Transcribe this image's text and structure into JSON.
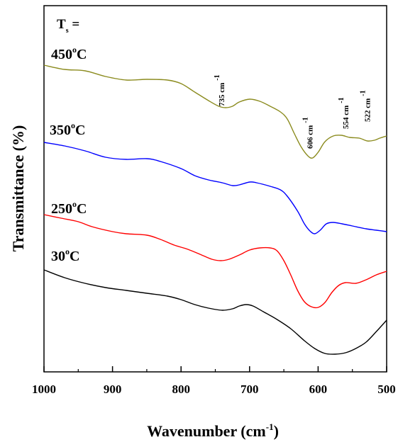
{
  "chart_data": {
    "type": "line",
    "title": "",
    "xlabel": "Wavenumber (cm",
    "xlabel_sup": "-1",
    "xlabel_close": ")",
    "ylabel": "Transmittance (%)",
    "xlim": [
      1000,
      500
    ],
    "x_reversed": true,
    "y_ticks_shown": false,
    "grid": false,
    "xticks": [
      1000,
      900,
      800,
      700,
      600,
      500
    ],
    "xtick_labels": [
      "1000",
      "900",
      "800",
      "700",
      "600",
      "500"
    ],
    "legend_title": {
      "main": "T",
      "sub": "s",
      "suffix": " ="
    },
    "series": [
      {
        "name": "450",
        "name_sup": "o",
        "name_unit": "C",
        "color": "#8b8b1e",
        "points": [
          [
            1000,
            92
          ],
          [
            970,
            98
          ],
          [
            940,
            100
          ],
          [
            910,
            108
          ],
          [
            880,
            113
          ],
          [
            850,
            112
          ],
          [
            820,
            113
          ],
          [
            800,
            118
          ],
          [
            780,
            130
          ],
          [
            760,
            142
          ],
          [
            745,
            150
          ],
          [
            735,
            152
          ],
          [
            725,
            150
          ],
          [
            715,
            144
          ],
          [
            700,
            140
          ],
          [
            685,
            143
          ],
          [
            670,
            150
          ],
          [
            655,
            158
          ],
          [
            645,
            168
          ],
          [
            635,
            188
          ],
          [
            625,
            207
          ],
          [
            615,
            220
          ],
          [
            608,
            223
          ],
          [
            600,
            215
          ],
          [
            590,
            200
          ],
          [
            578,
            192
          ],
          [
            566,
            191
          ],
          [
            554,
            194
          ],
          [
            540,
            195
          ],
          [
            528,
            199
          ],
          [
            518,
            198
          ],
          [
            510,
            195
          ],
          [
            500,
            192
          ]
        ]
      },
      {
        "name": "350",
        "name_sup": "o",
        "name_unit": "C",
        "color": "#0000ff",
        "points": [
          [
            1000,
            201
          ],
          [
            970,
            206
          ],
          [
            940,
            213
          ],
          [
            910,
            222
          ],
          [
            880,
            225
          ],
          [
            850,
            224
          ],
          [
            830,
            228
          ],
          [
            800,
            238
          ],
          [
            780,
            248
          ],
          [
            760,
            254
          ],
          [
            740,
            258
          ],
          [
            725,
            262
          ],
          [
            715,
            261
          ],
          [
            700,
            257
          ],
          [
            690,
            258
          ],
          [
            670,
            263
          ],
          [
            655,
            268
          ],
          [
            645,
            277
          ],
          [
            630,
            298
          ],
          [
            620,
            316
          ],
          [
            612,
            326
          ],
          [
            605,
            330
          ],
          [
            597,
            325
          ],
          [
            588,
            316
          ],
          [
            578,
            314
          ],
          [
            565,
            316
          ],
          [
            550,
            319
          ],
          [
            530,
            323
          ],
          [
            515,
            325
          ],
          [
            500,
            327
          ]
        ]
      },
      {
        "name": "250",
        "name_sup": "o",
        "name_unit": "C",
        "color": "#ff0000",
        "points": [
          [
            1000,
            303
          ],
          [
            975,
            308
          ],
          [
            950,
            313
          ],
          [
            930,
            320
          ],
          [
            900,
            327
          ],
          [
            880,
            330
          ],
          [
            850,
            332
          ],
          [
            830,
            338
          ],
          [
            810,
            346
          ],
          [
            790,
            352
          ],
          [
            770,
            360
          ],
          [
            755,
            366
          ],
          [
            742,
            368
          ],
          [
            730,
            366
          ],
          [
            715,
            360
          ],
          [
            700,
            353
          ],
          [
            685,
            350
          ],
          [
            670,
            350
          ],
          [
            660,
            354
          ],
          [
            650,
            368
          ],
          [
            640,
            388
          ],
          [
            630,
            410
          ],
          [
            620,
            426
          ],
          [
            610,
            433
          ],
          [
            600,
            434
          ],
          [
            590,
            427
          ],
          [
            580,
            413
          ],
          [
            570,
            403
          ],
          [
            560,
            399
          ],
          [
            545,
            400
          ],
          [
            530,
            395
          ],
          [
            515,
            388
          ],
          [
            500,
            383
          ]
        ]
      },
      {
        "name": "30",
        "name_sup": "o",
        "name_unit": "C",
        "color": "#000000",
        "points": [
          [
            1000,
            381
          ],
          [
            970,
            392
          ],
          [
            940,
            400
          ],
          [
            910,
            406
          ],
          [
            880,
            410
          ],
          [
            850,
            414
          ],
          [
            820,
            418
          ],
          [
            800,
            423
          ],
          [
            780,
            430
          ],
          [
            760,
            435
          ],
          [
            740,
            438
          ],
          [
            725,
            436
          ],
          [
            715,
            432
          ],
          [
            705,
            430
          ],
          [
            695,
            432
          ],
          [
            680,
            440
          ],
          [
            660,
            451
          ],
          [
            640,
            464
          ],
          [
            620,
            481
          ],
          [
            605,
            492
          ],
          [
            590,
            499
          ],
          [
            575,
            500
          ],
          [
            560,
            498
          ],
          [
            545,
            492
          ],
          [
            530,
            483
          ],
          [
            515,
            468
          ],
          [
            500,
            452
          ]
        ]
      }
    ],
    "annotations": [
      {
        "text": "735 cm",
        "sup": "-1",
        "x": 735
      },
      {
        "text": "606 cm",
        "sup": "-1",
        "x": 606
      },
      {
        "text": "554 cm",
        "sup": "-1",
        "x": 554
      },
      {
        "text": "522 cm",
        "sup": "-1",
        "x": 522
      }
    ]
  }
}
